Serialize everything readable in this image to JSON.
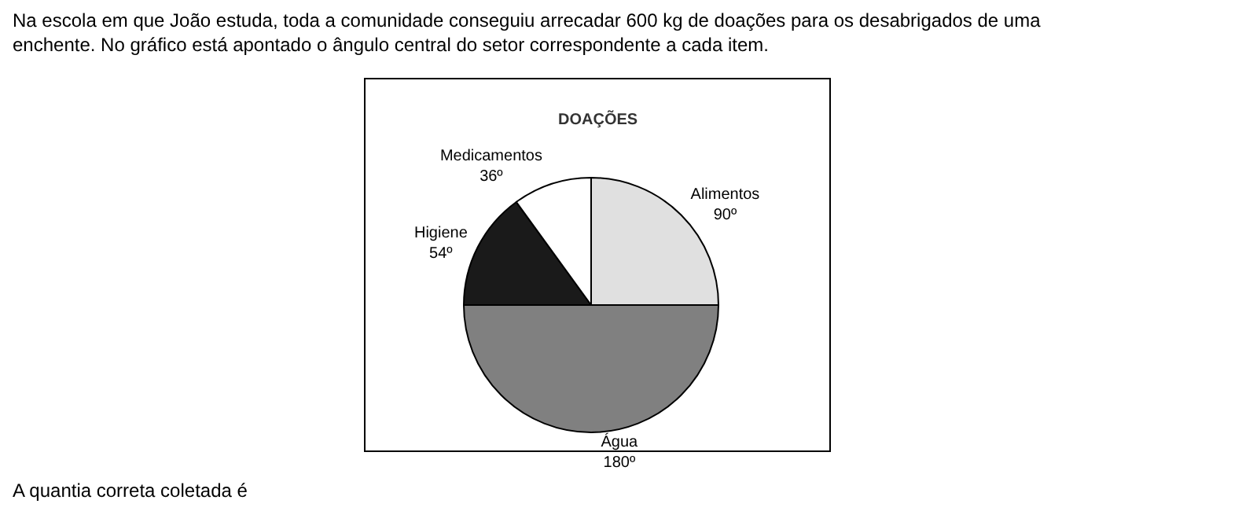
{
  "chart_data": {
    "type": "pie",
    "title": "DOAÇÕES",
    "categories": [
      "Alimentos",
      "Água",
      "Higiene",
      "Medicamentos"
    ],
    "values": [
      90,
      180,
      54,
      36
    ],
    "value_labels": [
      "90º",
      "180º",
      "54º",
      "36º"
    ],
    "colors": [
      "#e0e0e0",
      "#808080",
      "#1a1a1a",
      "#ffffff"
    ],
    "legend": false,
    "annotations": [
      "Na escola em que João estuda, toda a comunidade conseguiu arrecadar 600 kg de doações para os desabrigados de uma enchente. No gráfico está apontado o ângulo central do setor correspondente a cada item.",
      "A quantia correta coletada é"
    ]
  }
}
